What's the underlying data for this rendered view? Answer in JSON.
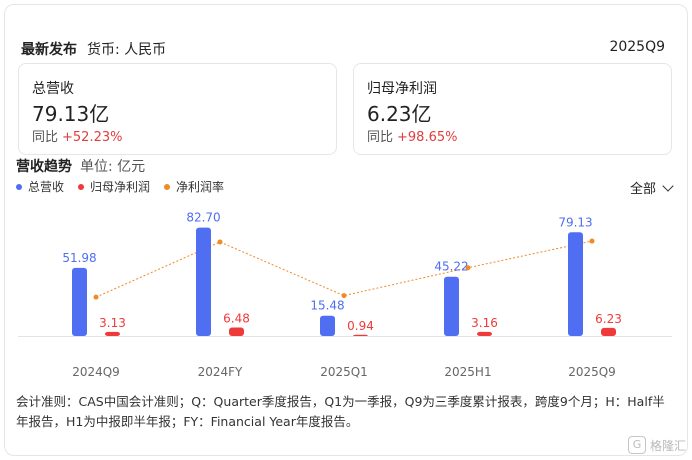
{
  "header": {
    "title": "最新发布",
    "currency": "货币: 人民币",
    "period": "2025Q9"
  },
  "kpis": [
    {
      "label": "总营收",
      "value": "79.13亿",
      "yoy_label": "同比",
      "yoy": "+52.23%"
    },
    {
      "label": "归母净利润",
      "value": "6.23亿",
      "yoy_label": "同比",
      "yoy": "+98.65%"
    }
  ],
  "section": {
    "title": "营收趋势",
    "unit": "单位: 亿元"
  },
  "legend": [
    {
      "name": "总营收",
      "color": "#4f6ef2"
    },
    {
      "name": "归母净利润",
      "color": "#f03a3a"
    },
    {
      "name": "净利润率",
      "color": "#f08a24"
    }
  ],
  "dropdown": {
    "label": "全部",
    "icon": "chevron-down-icon"
  },
  "chart_data": {
    "type": "bar",
    "categories": [
      "2024Q9",
      "2024FY",
      "2025Q1",
      "2025H1",
      "2025Q9"
    ],
    "series": [
      {
        "name": "总营收",
        "values": [
          51.98,
          82.7,
          15.48,
          45.22,
          79.13
        ],
        "labels": [
          "51.98",
          "82.70",
          "15.48",
          "45.22",
          "79.13"
        ],
        "color": "#4f6ef2"
      },
      {
        "name": "归母净利润",
        "values": [
          3.13,
          6.48,
          0.94,
          3.16,
          6.23
        ],
        "labels": [
          "3.13",
          "6.48",
          "0.94",
          "3.16",
          "6.23"
        ],
        "color": "#f03a3a"
      },
      {
        "name": "净利润率",
        "type": "line",
        "values": [
          6.02,
          7.84,
          6.07,
          6.99,
          7.87
        ],
        "color": "#f08a24"
      }
    ],
    "ylim": [
      0,
      90
    ]
  },
  "note": "会计准则：CAS中国会计准则；Q：Quarter季度报告，Q1为一季报，Q9为三季度累计报表，跨度9个月；H：Half半年报告，H1为中报即半年报；FY：Financial Year年度报告。",
  "watermark": "格隆汇"
}
